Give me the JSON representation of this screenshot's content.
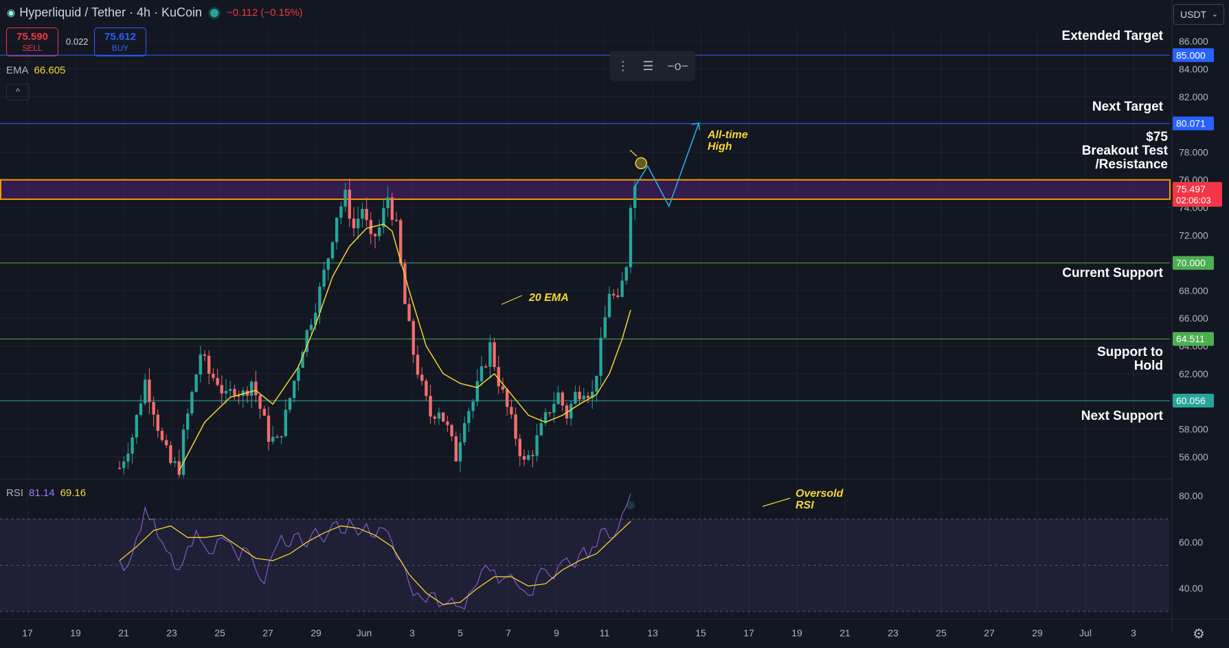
{
  "header": {
    "title": "Hyperliquid / Tether · 4h · KuCoin",
    "change": "−0.112 (−0.15%)",
    "sell_price": "75.590",
    "sell_label": "SELL",
    "buy_price": "75.612",
    "buy_label": "BUY",
    "spread": "0.022",
    "ema_label": "EMA",
    "ema_value": "66.605",
    "collapse_icon": "^",
    "currency": "USDT"
  },
  "rsi_legend": {
    "label": "RSI",
    "rsi": "81.14",
    "ma": "69.16"
  },
  "colors": {
    "bg": "#131722",
    "up": "#26a69a",
    "down": "#f26d6d",
    "ema": "#f7d633",
    "rsi": "#7e57c2",
    "target": "#2962ff",
    "support": "#4caf50",
    "zone": "#ff9800"
  },
  "chart_data": [
    {
      "type": "candlestick",
      "ylim": [
        54.5,
        87
      ],
      "y_ticks": [
        "86.000",
        "84.000",
        "82.000",
        "80.000",
        "78.000",
        "76.000",
        "74.000",
        "72.000",
        "70.000",
        "68.000",
        "66.000",
        "64.000",
        "62.000",
        "60.000",
        "58.000",
        "56.000"
      ],
      "x_ticks": [
        "17",
        "19",
        "21",
        "23",
        "25",
        "27",
        "29",
        "Jun",
        "3",
        "5",
        "7",
        "9",
        "11",
        "13",
        "15",
        "17",
        "19",
        "21",
        "23",
        "25",
        "27",
        "29",
        "Jul",
        "3"
      ],
      "last_price": "75.497",
      "countdown": "02:06:03",
      "levels": [
        {
          "value": 85.0,
          "tag": "85.000",
          "label": "Extended Target",
          "color": "#2962ff"
        },
        {
          "value": 80.071,
          "tag": "80.071",
          "label": "Next Target",
          "color": "#2962ff"
        },
        {
          "value": 70.0,
          "tag": "70.000",
          "label": "Current Support",
          "color": "#4caf50"
        },
        {
          "value": 64.511,
          "tag": "64.511",
          "label": "Support to Hold",
          "color": "#4caf50"
        },
        {
          "value": 60.056,
          "tag": "60.056",
          "label": "Next Support",
          "color": "#26a69a"
        }
      ],
      "resistance_zone": {
        "low": 74.6,
        "high": 76.0,
        "label_1": "$75",
        "label_2": "Breakout Test",
        "label_3": "/Resistance"
      },
      "annotations": {
        "ath": "All-time",
        "ath2": "High",
        "ema": "20 EMA"
      },
      "series": [
        {
          "name": "Price",
          "close_path": [
            [
              0,
              55.2
            ],
            [
              3,
              57.5
            ],
            [
              6,
              61.5
            ],
            [
              8,
              59.5
            ],
            [
              10,
              57.0
            ],
            [
              12,
              55.5
            ],
            [
              14,
              55.2
            ],
            [
              15,
              57.5
            ],
            [
              17,
              60.5
            ],
            [
              19,
              63.5
            ],
            [
              21,
              62.0
            ],
            [
              23,
              61.5
            ],
            [
              25,
              60.2
            ],
            [
              27,
              61.0
            ],
            [
              29,
              60.5
            ],
            [
              31,
              61.5
            ],
            [
              33,
              59.5
            ],
            [
              35,
              57.5
            ],
            [
              37,
              57.0
            ],
            [
              39,
              59.0
            ],
            [
              41,
              61.5
            ],
            [
              43,
              64.0
            ],
            [
              45,
              66.0
            ],
            [
              47,
              68.0
            ],
            [
              49,
              70.5
            ],
            [
              51,
              73.5
            ],
            [
              53,
              74.8
            ],
            [
              55,
              72.5
            ],
            [
              57,
              74.0
            ],
            [
              59,
              71.5
            ],
            [
              61,
              72.5
            ],
            [
              63,
              74.8
            ],
            [
              65,
              72.5
            ],
            [
              67,
              67.0
            ],
            [
              69,
              63.5
            ],
            [
              71,
              61.0
            ],
            [
              73,
              59.0
            ],
            [
              75,
              59.5
            ],
            [
              77,
              58.0
            ],
            [
              79,
              56.0
            ],
            [
              81,
              59.0
            ],
            [
              83,
              60.0
            ],
            [
              85,
              62.0
            ],
            [
              87,
              64.0
            ],
            [
              89,
              61.5
            ],
            [
              91,
              59.5
            ],
            [
              93,
              57.5
            ],
            [
              95,
              55.5
            ],
            [
              97,
              56.5
            ],
            [
              99,
              58.0
            ],
            [
              101,
              59.5
            ],
            [
              103,
              60.5
            ],
            [
              105,
              59.0
            ],
            [
              107,
              60.5
            ],
            [
              109,
              61.0
            ],
            [
              111,
              60.5
            ],
            [
              113,
              64.0
            ],
            [
              115,
              68.0
            ],
            [
              117,
              67.0
            ],
            [
              119,
              70.0
            ],
            [
              120,
              74.5
            ],
            [
              121,
              75.5
            ]
          ]
        },
        {
          "name": "20 EMA",
          "path": [
            [
              14,
              55.0
            ],
            [
              20,
              58.5
            ],
            [
              26,
              60.3
            ],
            [
              32,
              60.8
            ],
            [
              36,
              59.8
            ],
            [
              42,
              62.5
            ],
            [
              46,
              65.5
            ],
            [
              50,
              69.0
            ],
            [
              54,
              71.2
            ],
            [
              58,
              72.5
            ],
            [
              62,
              72.8
            ],
            [
              64,
              72.3
            ],
            [
              68,
              68.0
            ],
            [
              72,
              64.0
            ],
            [
              76,
              62.0
            ],
            [
              80,
              61.3
            ],
            [
              84,
              61.0
            ],
            [
              88,
              62.0
            ],
            [
              92,
              60.5
            ],
            [
              96,
              59.0
            ],
            [
              100,
              58.5
            ],
            [
              104,
              59.0
            ],
            [
              108,
              59.8
            ],
            [
              112,
              60.5
            ],
            [
              115,
              62.0
            ],
            [
              118,
              64.5
            ],
            [
              120,
              66.6
            ]
          ]
        }
      ],
      "projection": [
        [
          121,
          75.5
        ],
        [
          124,
          77.0
        ],
        [
          129,
          74.1
        ],
        [
          136,
          80.1
        ]
      ]
    },
    {
      "type": "line",
      "ylim": [
        27,
        87
      ],
      "y_ticks": [
        "80.00",
        "60.00",
        "40.00"
      ],
      "annotation": "Oversold\nRSI",
      "series": [
        {
          "name": "RSI",
          "path": [
            [
              0,
              52
            ],
            [
              2,
              50
            ],
            [
              4,
              62
            ],
            [
              6,
              75
            ],
            [
              8,
              70
            ],
            [
              10,
              60
            ],
            [
              12,
              55
            ],
            [
              14,
              48
            ],
            [
              16,
              58
            ],
            [
              18,
              65
            ],
            [
              20,
              58
            ],
            [
              22,
              55
            ],
            [
              24,
              62
            ],
            [
              26,
              60
            ],
            [
              28,
              52
            ],
            [
              30,
              57
            ],
            [
              32,
              48
            ],
            [
              34,
              42
            ],
            [
              36,
              55
            ],
            [
              38,
              63
            ],
            [
              40,
              58
            ],
            [
              42,
              64
            ],
            [
              44,
              58
            ],
            [
              46,
              66
            ],
            [
              48,
              60
            ],
            [
              50,
              68
            ],
            [
              52,
              64
            ],
            [
              54,
              70
            ],
            [
              56,
              63
            ],
            [
              58,
              68
            ],
            [
              60,
              62
            ],
            [
              62,
              66
            ],
            [
              64,
              60
            ],
            [
              66,
              52
            ],
            [
              68,
              42
            ],
            [
              70,
              38
            ],
            [
              72,
              34
            ],
            [
              74,
              38
            ],
            [
              76,
              33
            ],
            [
              78,
              36
            ],
            [
              80,
              32
            ],
            [
              82,
              38
            ],
            [
              84,
              42
            ],
            [
              86,
              50
            ],
            [
              88,
              48
            ],
            [
              90,
              44
            ],
            [
              92,
              46
            ],
            [
              94,
              40
            ],
            [
              96,
              37
            ],
            [
              98,
              45
            ],
            [
              100,
              48
            ],
            [
              102,
              44
            ],
            [
              104,
              52
            ],
            [
              106,
              50
            ],
            [
              108,
              55
            ],
            [
              110,
              53
            ],
            [
              112,
              58
            ],
            [
              114,
              66
            ],
            [
              116,
              62
            ],
            [
              118,
              72
            ],
            [
              120,
              81
            ]
          ]
        },
        {
          "name": "RSI MA",
          "path": [
            [
              0,
              52
            ],
            [
              4,
              58
            ],
            [
              8,
              65
            ],
            [
              12,
              67
            ],
            [
              16,
              62
            ],
            [
              20,
              62
            ],
            [
              24,
              63
            ],
            [
              28,
              58
            ],
            [
              32,
              53
            ],
            [
              36,
              52
            ],
            [
              40,
              55
            ],
            [
              44,
              60
            ],
            [
              48,
              64
            ],
            [
              52,
              67
            ],
            [
              56,
              66
            ],
            [
              60,
              63
            ],
            [
              64,
              58
            ],
            [
              68,
              46
            ],
            [
              72,
              38
            ],
            [
              76,
              33
            ],
            [
              80,
              34
            ],
            [
              84,
              40
            ],
            [
              88,
              45
            ],
            [
              92,
              45
            ],
            [
              96,
              41
            ],
            [
              100,
              42
            ],
            [
              104,
              48
            ],
            [
              108,
              52
            ],
            [
              112,
              55
            ],
            [
              116,
              62
            ],
            [
              120,
              69
            ]
          ]
        }
      ]
    }
  ]
}
